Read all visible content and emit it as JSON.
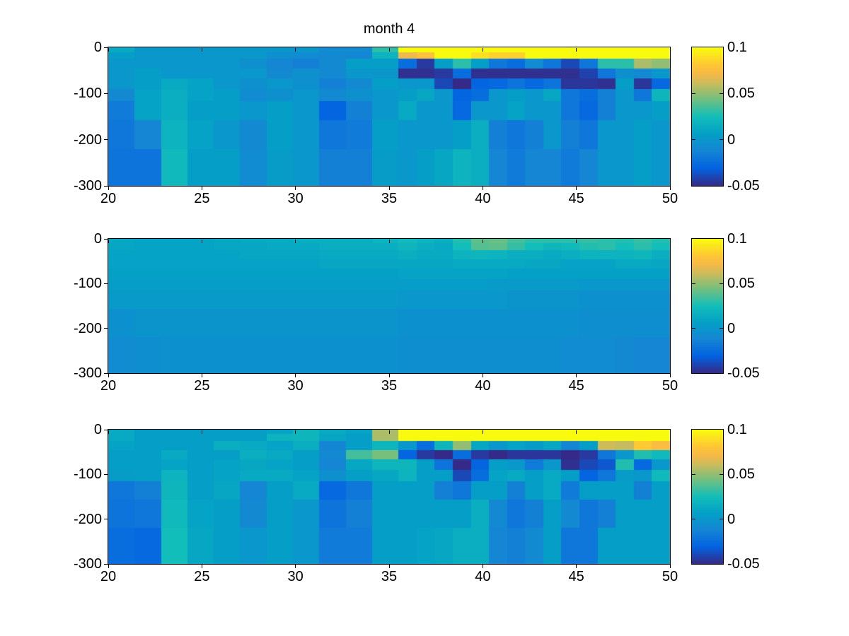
{
  "title": "month 4",
  "figure": {
    "background": "#ffffff",
    "frame_color": "#000000"
  },
  "colormap": {
    "name": "parula",
    "vmin": -0.05,
    "vmax": 0.1,
    "anchors": [
      {
        "t": 0,
        "hex": "#352a87"
      },
      {
        "t": 0.125,
        "hex": "#0363e1"
      },
      {
        "t": 0.25,
        "hex": "#1585d4"
      },
      {
        "t": 0.375,
        "hex": "#04a0c6"
      },
      {
        "t": 0.5,
        "hex": "#12beb9"
      },
      {
        "t": 0.625,
        "hex": "#71bf80"
      },
      {
        "t": 0.75,
        "hex": "#d1bb59"
      },
      {
        "t": 0.8125,
        "hex": "#f7b947"
      },
      {
        "t": 0.875,
        "hex": "#fec735"
      },
      {
        "t": 1,
        "hex": "#f9fb0e"
      }
    ]
  },
  "axes": {
    "x_tick_labels": [
      "20",
      "25",
      "30",
      "35",
      "40",
      "45",
      "50"
    ],
    "x_tick_values": [
      20,
      25,
      30,
      35,
      40,
      45,
      50
    ],
    "y_tick_labels": [
      "0",
      "-100",
      "-200",
      "-300"
    ],
    "y_tick_values": [
      0,
      -100,
      -200,
      -300
    ],
    "colorbar_tick_labels": [
      "0.1",
      "0.05",
      "0",
      "-0.05"
    ],
    "colorbar_tick_values": [
      0.1,
      0.05,
      0,
      -0.05
    ],
    "colorbar_notch_values": [
      0.05,
      0
    ]
  },
  "chart_data": {
    "type": "heatmap",
    "title": "month 4",
    "xlabel": "",
    "ylabel": "",
    "x_range": [
      20,
      50
    ],
    "y_range": [
      -300,
      0
    ],
    "grid": false,
    "colorbar": {
      "vmin": -0.05,
      "vmax": 0.1,
      "ticks": [
        0.1,
        0.05,
        0,
        -0.05
      ],
      "colormap": "parula",
      "position": "right"
    },
    "x_edges": [
      20,
      21.409,
      22.818,
      24.227,
      25.636,
      27.045,
      28.455,
      29.864,
      31.273,
      32.682,
      34.091,
      35.5,
      36.467,
      37.433,
      38.4,
      39.367,
      40.333,
      41.3,
      42.267,
      43.233,
      44.2,
      45.167,
      46.133,
      47.1,
      48.067,
      49.033,
      50
    ],
    "y_edges": [
      0,
      -10,
      -25,
      -46,
      -67,
      -90,
      -116,
      -157,
      -220,
      -300
    ],
    "panels": [
      {
        "name": "top",
        "title": "month 4",
        "values": [
          [
            0.012,
            0,
            0,
            0,
            0,
            0,
            0,
            0,
            -0.008,
            -0.008,
            0.03,
            0.1,
            0.1,
            0.1,
            0.1,
            0.1,
            0.1,
            0.1,
            0.1,
            0.1,
            0.1,
            0.1,
            0.1,
            0.1,
            0.1,
            0.1
          ],
          [
            0.005,
            0,
            0,
            0,
            0,
            0,
            -0.005,
            -0.008,
            -0.01,
            -0.012,
            0.018,
            0.07,
            0.078,
            0.1,
            0.1,
            0.09,
            0.085,
            0.085,
            0.1,
            0.1,
            0.1,
            0.1,
            0.1,
            0.1,
            0.1,
            0.1
          ],
          [
            0,
            0,
            0,
            0,
            0,
            -0.005,
            -0.012,
            -0.015,
            -0.01,
            0.005,
            0.005,
            -0.025,
            -0.045,
            0.005,
            0.03,
            0.005,
            -0.02,
            -0.025,
            -0.008,
            -0.02,
            -0.04,
            -0.02,
            0.03,
            0.03,
            0.055,
            0.05
          ],
          [
            0,
            0.005,
            0,
            0,
            0,
            0,
            -0.01,
            -0.005,
            -0.01,
            0,
            0,
            -0.048,
            -0.048,
            -0.045,
            -0.025,
            -0.048,
            -0.048,
            -0.048,
            -0.048,
            -0.048,
            -0.048,
            -0.042,
            -0.02,
            -0.005,
            -0.01,
            0
          ],
          [
            0,
            0.005,
            0.012,
            0.008,
            0,
            -0.005,
            0,
            -0.005,
            -0.015,
            -0.01,
            0.005,
            0,
            0,
            -0.04,
            -0.05,
            -0.03,
            -0.028,
            -0.022,
            -0.028,
            -0.022,
            -0.046,
            -0.046,
            -0.048,
            0.005,
            -0.046,
            -0.028
          ],
          [
            -0.01,
            0.008,
            0.015,
            0.008,
            0.005,
            -0.008,
            -0.005,
            0,
            -0.01,
            -0.005,
            0,
            0.005,
            0.01,
            0,
            -0.03,
            -0.025,
            0,
            0.005,
            0,
            0.01,
            -0.02,
            -0.025,
            -0.015,
            0,
            -0.02,
            0.02
          ],
          [
            -0.018,
            0.008,
            0.015,
            0.005,
            0.005,
            0,
            0.005,
            0,
            -0.03,
            -0.015,
            0,
            0.012,
            0,
            0,
            -0.028,
            0,
            0,
            0.008,
            0,
            0,
            -0.02,
            -0.028,
            -0.015,
            0,
            0,
            0.005
          ],
          [
            -0.02,
            -0.012,
            0.018,
            0.008,
            0,
            -0.01,
            0.005,
            0,
            -0.02,
            -0.018,
            0.005,
            0,
            0,
            0,
            0.005,
            0.015,
            -0.015,
            -0.02,
            -0.015,
            0,
            -0.015,
            -0.02,
            0,
            0,
            0.005,
            0
          ],
          [
            -0.022,
            -0.022,
            0.022,
            0.005,
            0.005,
            -0.008,
            0.003,
            0,
            -0.015,
            -0.015,
            0.003,
            0,
            0.005,
            0.01,
            0.018,
            0.015,
            -0.012,
            -0.018,
            -0.012,
            -0.012,
            -0.018,
            -0.012,
            0,
            0,
            0.005,
            0
          ]
        ]
      },
      {
        "name": "middle",
        "title": "",
        "values": [
          [
            0.01,
            0.008,
            0.008,
            0.008,
            0.01,
            0.012,
            0.012,
            0.015,
            0.015,
            0.015,
            0.018,
            0.022,
            0.018,
            0.015,
            0.028,
            0.04,
            0.042,
            0.035,
            0.03,
            0.03,
            0.03,
            0.032,
            0.03,
            0.028,
            0.032,
            0.028
          ],
          [
            0.01,
            0.008,
            0.008,
            0.008,
            0.01,
            0.01,
            0.012,
            0.012,
            0.015,
            0.015,
            0.015,
            0.02,
            0.015,
            0.012,
            0.025,
            0.038,
            0.04,
            0.032,
            0.025,
            0.02,
            0.022,
            0.028,
            0.03,
            0.025,
            0.03,
            0.025
          ],
          [
            0.008,
            0.008,
            0.008,
            0.008,
            0.008,
            0.01,
            0.01,
            0.01,
            0.012,
            0.012,
            0.012,
            0.015,
            0.012,
            0.012,
            0.018,
            0.02,
            0.018,
            0.015,
            0.015,
            0.012,
            0.015,
            0.018,
            0.018,
            0.018,
            0.02,
            0.015
          ],
          [
            0.008,
            0.008,
            0.008,
            0.008,
            0.008,
            0.008,
            0.008,
            0.008,
            0.01,
            0.01,
            0.01,
            0.01,
            0.01,
            0.01,
            0.012,
            0.012,
            0.012,
            0.012,
            0.01,
            0.01,
            0.008,
            0.008,
            0.008,
            0.012,
            0.012,
            0.01
          ],
          [
            0.006,
            0.006,
            0.006,
            0.006,
            0.006,
            0.006,
            0.006,
            0.006,
            0.006,
            0.006,
            0.006,
            0.008,
            0.008,
            0.008,
            0.008,
            0.008,
            0.008,
            0.006,
            0.006,
            0.006,
            0.006,
            0.006,
            0.006,
            0.006,
            0.006,
            0.006
          ],
          [
            0.004,
            0.004,
            0.004,
            0.004,
            0.004,
            0.004,
            0.004,
            0.004,
            0.004,
            0.004,
            0.004,
            0.004,
            0.004,
            0.004,
            0.004,
            0.004,
            0.002,
            0.002,
            0.002,
            0.002,
            0.002,
            0,
            0,
            0,
            0,
            0
          ],
          [
            0.002,
            0.002,
            0.002,
            0.002,
            0.002,
            0.002,
            0.002,
            0.002,
            0.002,
            0.002,
            0.002,
            0,
            0,
            0,
            0,
            0,
            0,
            -0.002,
            -0.002,
            -0.002,
            -0.002,
            -0.004,
            -0.004,
            -0.004,
            -0.004,
            -0.004
          ],
          [
            -0.004,
            -0.002,
            -0.002,
            -0.002,
            -0.002,
            -0.002,
            -0.002,
            -0.002,
            -0.002,
            -0.002,
            -0.002,
            -0.004,
            -0.004,
            -0.004,
            -0.004,
            -0.004,
            -0.004,
            -0.004,
            -0.004,
            -0.004,
            -0.004,
            -0.006,
            -0.006,
            -0.006,
            -0.006,
            -0.006
          ],
          [
            -0.008,
            -0.006,
            -0.004,
            -0.004,
            -0.004,
            -0.004,
            -0.004,
            -0.004,
            -0.004,
            -0.004,
            -0.004,
            -0.006,
            -0.006,
            -0.006,
            -0.006,
            -0.006,
            -0.006,
            -0.006,
            -0.006,
            -0.006,
            -0.008,
            -0.008,
            -0.008,
            -0.01,
            -0.012,
            -0.012
          ]
        ]
      },
      {
        "name": "bottom",
        "title": "",
        "values": [
          [
            0.012,
            0.005,
            0.005,
            0.005,
            0.005,
            0.005,
            0.008,
            0.02,
            0.012,
            0.008,
            0.055,
            0.1,
            0.1,
            0.1,
            0.1,
            0.1,
            0.1,
            0.1,
            0.1,
            0.1,
            0.1,
            0.1,
            0.1,
            0.1,
            0.1,
            0.1
          ],
          [
            0.012,
            0.005,
            0.005,
            0.005,
            0.005,
            0.005,
            0.018,
            0.02,
            0.01,
            0.005,
            0.055,
            0.1,
            0.1,
            0.1,
            0.1,
            0.1,
            0.1,
            0.1,
            0.1,
            0.1,
            0.1,
            0.1,
            0.1,
            0.1,
            0.1,
            0.1
          ],
          [
            0.008,
            0.005,
            0.005,
            0.005,
            0.015,
            0.012,
            0.008,
            0.015,
            -0.012,
            0.005,
            0.02,
            0,
            -0.025,
            0.02,
            0.05,
            0.01,
            0,
            0.008,
            0.003,
            0.01,
            -0.012,
            0.005,
            0.062,
            0.06,
            0.082,
            0.075
          ],
          [
            0.005,
            0.005,
            0.012,
            0.005,
            0.005,
            0.015,
            0.012,
            0.005,
            -0.01,
            0.035,
            0.045,
            -0.03,
            -0.045,
            -0.05,
            -0.025,
            -0.045,
            -0.05,
            -0.046,
            -0.046,
            -0.046,
            -0.05,
            -0.045,
            -0.02,
            0,
            0.028,
            0.022
          ],
          [
            0.005,
            0.005,
            0.008,
            0.005,
            0.008,
            0.01,
            0.008,
            0.005,
            -0.012,
            0.01,
            0.02,
            0.02,
            0.005,
            -0.022,
            -0.05,
            -0.03,
            0.005,
            0,
            -0.018,
            0,
            -0.048,
            -0.04,
            -0.035,
            0.028,
            -0.028,
            0
          ],
          [
            0.003,
            0.005,
            0.018,
            0.005,
            0.008,
            0.012,
            0.012,
            0.008,
            -0.005,
            0.005,
            0.01,
            0.018,
            0.005,
            0.005,
            -0.04,
            -0.025,
            0.008,
            0.012,
            0.005,
            0.012,
            0.005,
            -0.03,
            -0.02,
            0.003,
            0,
            0.022
          ],
          [
            -0.02,
            -0.015,
            0.02,
            0.005,
            0.01,
            -0.012,
            0.005,
            0.012,
            -0.028,
            -0.02,
            0.005,
            0.005,
            0.005,
            -0.015,
            -0.02,
            0.005,
            0.005,
            -0.015,
            0.005,
            0.012,
            -0.018,
            0.005,
            0.005,
            0.005,
            -0.015,
            0.005
          ],
          [
            -0.022,
            -0.02,
            0.022,
            0.008,
            0.005,
            -0.01,
            0.005,
            0,
            -0.022,
            -0.015,
            0.005,
            0.005,
            0.005,
            0.005,
            0.005,
            0.015,
            -0.01,
            -0.02,
            -0.015,
            0.005,
            -0.01,
            -0.02,
            -0.015,
            0.005,
            0.005,
            0.005
          ],
          [
            -0.025,
            -0.028,
            0.025,
            0.01,
            0.005,
            0,
            0.005,
            0,
            -0.018,
            -0.018,
            0.005,
            0.005,
            0.008,
            0.01,
            0.015,
            0.015,
            -0.012,
            -0.015,
            -0.01,
            0.005,
            -0.02,
            -0.02,
            0.005,
            0.005,
            0.005,
            0.005
          ]
        ]
      }
    ]
  }
}
